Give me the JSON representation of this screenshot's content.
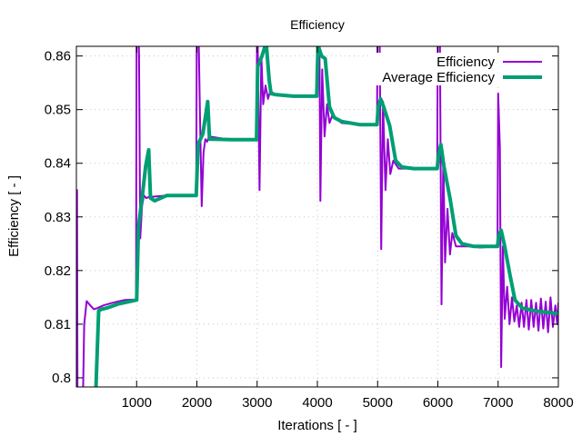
{
  "chart_data": {
    "type": "line",
    "title": "Efficiency",
    "xlabel": "Iterations [ - ]",
    "ylabel": "Efficiency [ - ]",
    "xlim": [
      0,
      8000
    ],
    "ylim": [
      0.7983,
      0.8618
    ],
    "grid": true,
    "legend_position": "top-right",
    "x_ticks": [
      1000,
      2000,
      3000,
      4000,
      5000,
      6000,
      7000,
      8000
    ],
    "x_tick_labels": [
      "1000",
      "2000",
      "3000",
      "4000",
      "5000",
      "6000",
      "7000",
      "8000"
    ],
    "y_ticks": [
      0.8,
      0.81,
      0.82,
      0.83,
      0.84,
      0.85,
      0.86
    ],
    "y_tick_labels": [
      "0.8",
      "0.81",
      "0.82",
      "0.83",
      "0.84",
      "0.85",
      "0.86"
    ],
    "series": [
      {
        "name": "Efficiency",
        "color": "#9400d3",
        "points": [
          [
            0,
            0.79
          ],
          [
            10,
            0.835
          ],
          [
            20,
            0.79
          ],
          [
            100,
            0.79
          ],
          [
            130,
            0.81
          ],
          [
            170,
            0.8143
          ],
          [
            230,
            0.8135
          ],
          [
            290,
            0.8128
          ],
          [
            350,
            0.813
          ],
          [
            450,
            0.8135
          ],
          [
            600,
            0.814
          ],
          [
            800,
            0.8145
          ],
          [
            990,
            0.8146
          ],
          [
            1000,
            0.87
          ],
          [
            1020,
            0.87
          ],
          [
            1040,
            0.86
          ],
          [
            1060,
            0.826
          ],
          [
            1090,
            0.832
          ],
          [
            1120,
            0.834
          ],
          [
            1160,
            0.8335
          ],
          [
            1200,
            0.8337
          ],
          [
            1300,
            0.8338
          ],
          [
            1500,
            0.834
          ],
          [
            1990,
            0.834
          ],
          [
            2000,
            0.87
          ],
          [
            2020,
            0.87
          ],
          [
            2050,
            0.85
          ],
          [
            2080,
            0.832
          ],
          [
            2110,
            0.842
          ],
          [
            2140,
            0.8445
          ],
          [
            2170,
            0.844
          ],
          [
            2200,
            0.845
          ],
          [
            2500,
            0.8445
          ],
          [
            2990,
            0.8445
          ],
          [
            3000,
            0.87
          ],
          [
            3040,
            0.835
          ],
          [
            3070,
            0.86
          ],
          [
            3100,
            0.851
          ],
          [
            3140,
            0.8545
          ],
          [
            3180,
            0.852
          ],
          [
            3220,
            0.8535
          ],
          [
            3300,
            0.8528
          ],
          [
            3600,
            0.8525
          ],
          [
            3990,
            0.8525
          ],
          [
            4000,
            0.87
          ],
          [
            4030,
            0.87
          ],
          [
            4050,
            0.833
          ],
          [
            4080,
            0.8575
          ],
          [
            4120,
            0.845
          ],
          [
            4160,
            0.851
          ],
          [
            4200,
            0.8475
          ],
          [
            4250,
            0.849
          ],
          [
            4400,
            0.8475
          ],
          [
            4700,
            0.8472
          ],
          [
            4990,
            0.8472
          ],
          [
            5000,
            0.87
          ],
          [
            5030,
            0.87
          ],
          [
            5060,
            0.824
          ],
          [
            5090,
            0.8515
          ],
          [
            5130,
            0.835
          ],
          [
            5170,
            0.8445
          ],
          [
            5210,
            0.838
          ],
          [
            5260,
            0.8405
          ],
          [
            5350,
            0.839
          ],
          [
            5600,
            0.839
          ],
          [
            5990,
            0.839
          ],
          [
            6000,
            0.87
          ],
          [
            6030,
            0.87
          ],
          [
            6060,
            0.8137
          ],
          [
            6090,
            0.841
          ],
          [
            6120,
            0.8215
          ],
          [
            6160,
            0.8315
          ],
          [
            6200,
            0.823
          ],
          [
            6240,
            0.827
          ],
          [
            6300,
            0.8245
          ],
          [
            6500,
            0.8245
          ],
          [
            6700,
            0.8243
          ],
          [
            6990,
            0.8245
          ],
          [
            7000,
            0.853
          ],
          [
            7030,
            0.843
          ],
          [
            7050,
            0.802
          ],
          [
            7080,
            0.8245
          ],
          [
            7110,
            0.811
          ],
          [
            7150,
            0.817
          ],
          [
            7190,
            0.81
          ],
          [
            7230,
            0.815
          ],
          [
            7270,
            0.8105
          ],
          [
            7310,
            0.8135
          ],
          [
            7350,
            0.8095
          ],
          [
            7390,
            0.814
          ],
          [
            7430,
            0.8095
          ],
          [
            7470,
            0.8145
          ],
          [
            7510,
            0.809
          ],
          [
            7550,
            0.8145
          ],
          [
            7590,
            0.8095
          ],
          [
            7630,
            0.814
          ],
          [
            7670,
            0.8088
          ],
          [
            7710,
            0.8148
          ],
          [
            7750,
            0.8092
          ],
          [
            7790,
            0.8142
          ],
          [
            7830,
            0.8085
          ],
          [
            7870,
            0.815
          ],
          [
            7910,
            0.8095
          ],
          [
            7950,
            0.8135
          ],
          [
            7980,
            0.81
          ],
          [
            8000,
            0.814
          ]
        ]
      },
      {
        "name": "Average Efficiency",
        "color": "#009e73",
        "points": [
          [
            300,
            0.79
          ],
          [
            330,
            0.8
          ],
          [
            370,
            0.8125
          ],
          [
            420,
            0.8128
          ],
          [
            500,
            0.813
          ],
          [
            700,
            0.8138
          ],
          [
            1000,
            0.8145
          ],
          [
            1030,
            0.828
          ],
          [
            1100,
            0.8345
          ],
          [
            1150,
            0.8395
          ],
          [
            1200,
            0.8425
          ],
          [
            1230,
            0.8335
          ],
          [
            1300,
            0.833
          ],
          [
            1500,
            0.834
          ],
          [
            1990,
            0.834
          ],
          [
            2020,
            0.8435
          ],
          [
            2100,
            0.8455
          ],
          [
            2180,
            0.8515
          ],
          [
            2210,
            0.8445
          ],
          [
            2300,
            0.8445
          ],
          [
            2600,
            0.8444
          ],
          [
            2990,
            0.8444
          ],
          [
            3010,
            0.858
          ],
          [
            3080,
            0.86
          ],
          [
            3150,
            0.8625
          ],
          [
            3200,
            0.8555
          ],
          [
            3230,
            0.853
          ],
          [
            3300,
            0.8528
          ],
          [
            3600,
            0.8525
          ],
          [
            3990,
            0.8525
          ],
          [
            4010,
            0.862
          ],
          [
            4070,
            0.86
          ],
          [
            4130,
            0.8595
          ],
          [
            4200,
            0.8505
          ],
          [
            4280,
            0.8485
          ],
          [
            4400,
            0.8478
          ],
          [
            4700,
            0.8472
          ],
          [
            4990,
            0.8472
          ],
          [
            5010,
            0.8505
          ],
          [
            5050,
            0.852
          ],
          [
            5100,
            0.8505
          ],
          [
            5200,
            0.847
          ],
          [
            5300,
            0.8405
          ],
          [
            5400,
            0.8393
          ],
          [
            5600,
            0.839
          ],
          [
            5990,
            0.839
          ],
          [
            6010,
            0.8415
          ],
          [
            6050,
            0.8435
          ],
          [
            6100,
            0.8395
          ],
          [
            6200,
            0.8335
          ],
          [
            6300,
            0.8265
          ],
          [
            6400,
            0.825
          ],
          [
            6600,
            0.8245
          ],
          [
            6990,
            0.8245
          ],
          [
            7010,
            0.8265
          ],
          [
            7050,
            0.8275
          ],
          [
            7100,
            0.825
          ],
          [
            7200,
            0.819
          ],
          [
            7280,
            0.8145
          ],
          [
            7400,
            0.813
          ],
          [
            7600,
            0.8125
          ],
          [
            7800,
            0.8122
          ],
          [
            8000,
            0.812
          ]
        ]
      }
    ]
  }
}
